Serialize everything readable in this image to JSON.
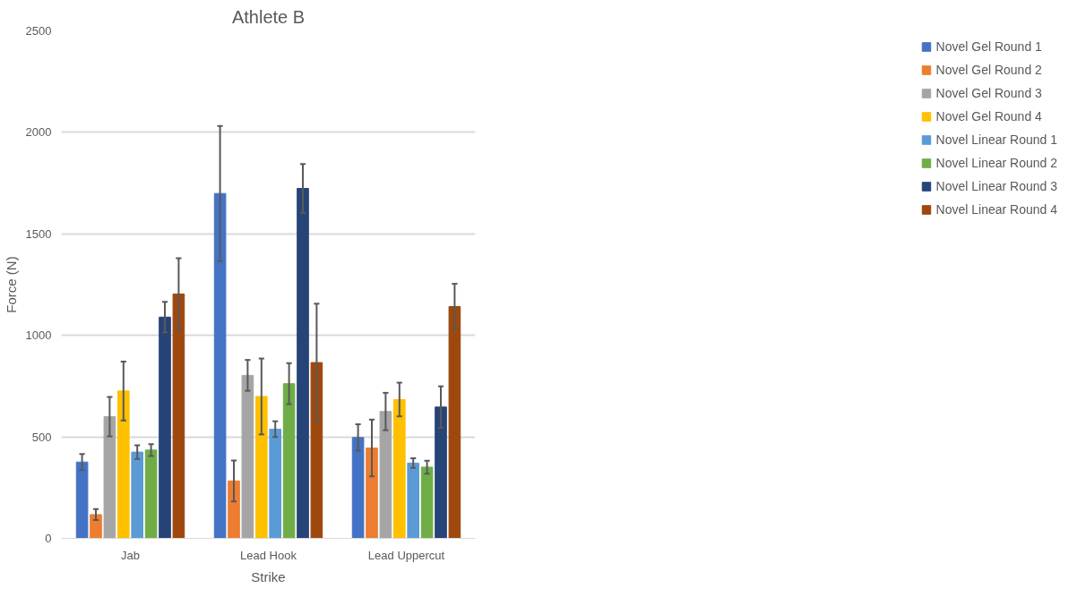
{
  "chart_data": {
    "type": "bar",
    "title": "Athlete B",
    "xlabel": "Strike",
    "ylabel": "Force (N)",
    "categories": [
      "Jab",
      "Lead Hook",
      "Lead Uppercut"
    ],
    "ylim": [
      0,
      2500
    ],
    "yticks": [
      0,
      500,
      1000,
      1500,
      2000,
      2500
    ],
    "grid": "y",
    "legend": "right",
    "series": [
      {
        "name": "Novel Gel Round 1",
        "color": "#4472c4",
        "values": [
          376,
          1699,
          497
        ],
        "errors": [
          40,
          333,
          65
        ]
      },
      {
        "name": "Novel Gel Round 2",
        "color": "#ed7d31",
        "values": [
          117,
          283,
          445
        ],
        "errors": [
          27,
          101,
          140
        ]
      },
      {
        "name": "Novel Gel Round 3",
        "color": "#a5a5a5",
        "values": [
          600,
          803,
          625
        ],
        "errors": [
          97,
          76,
          92
        ]
      },
      {
        "name": "Novel Gel Round 4",
        "color": "#ffc000",
        "values": [
          726,
          699,
          684
        ],
        "errors": [
          145,
          187,
          83
        ]
      },
      {
        "name": "Novel Linear Round 1",
        "color": "#5b9bd5",
        "values": [
          425,
          538,
          371
        ],
        "errors": [
          34,
          39,
          24
        ]
      },
      {
        "name": "Novel Linear Round 2",
        "color": "#70ad47",
        "values": [
          435,
          762,
          351
        ],
        "errors": [
          29,
          101,
          32
        ]
      },
      {
        "name": "Novel Linear Round 3",
        "color": "#264478",
        "values": [
          1090,
          1724,
          647
        ],
        "errors": [
          75,
          120,
          102
        ]
      },
      {
        "name": "Novel Linear Round 4",
        "color": "#9e480e",
        "values": [
          1204,
          866,
          1142
        ],
        "errors": [
          176,
          290,
          112
        ]
      }
    ]
  }
}
